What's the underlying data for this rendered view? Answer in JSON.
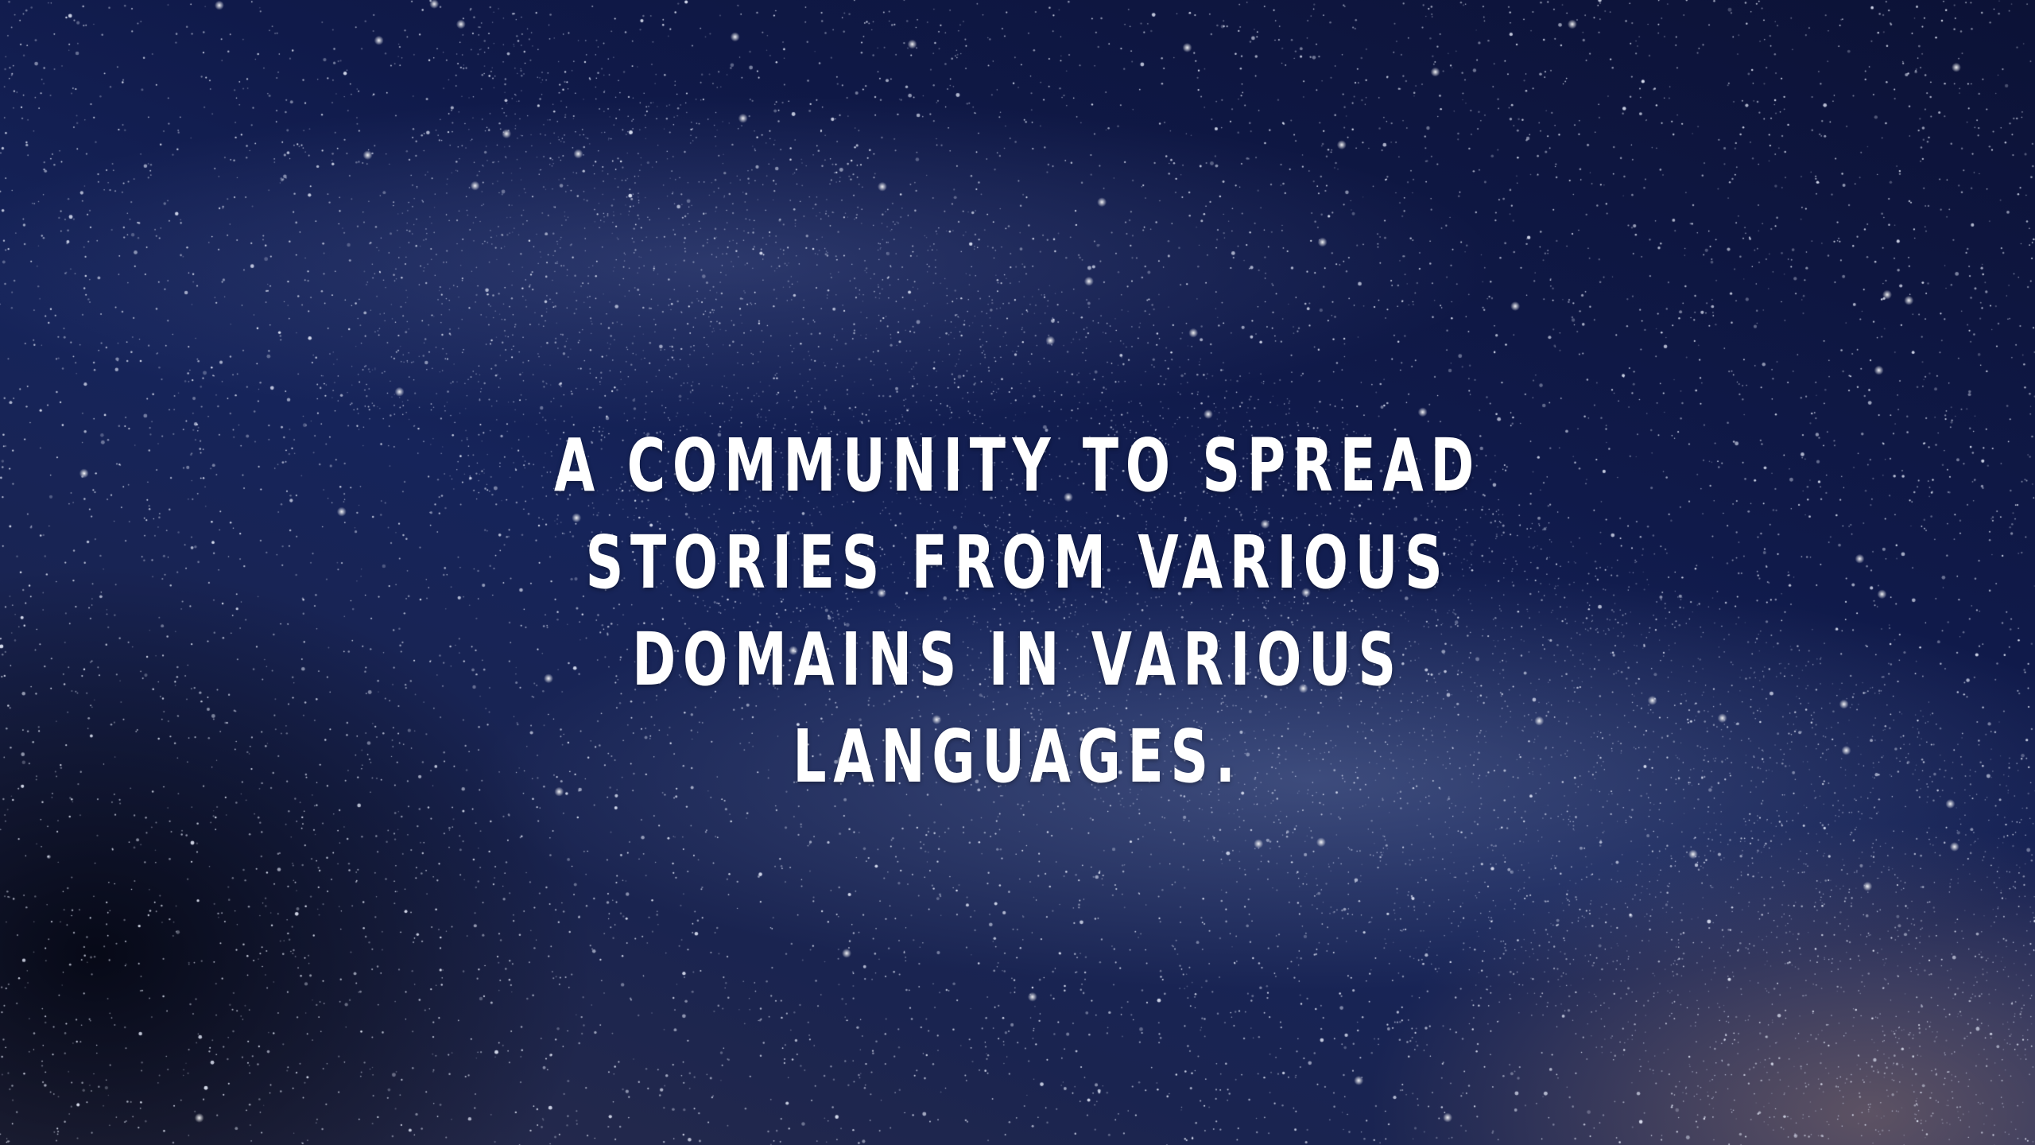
{
  "hero": {
    "tagline": "A COMMUNITY TO SPREAD STORIES FROM VARIOUS DOMAINS IN VARIOUS LANGUAGES.",
    "background": "starry-night-sky",
    "colors": {
      "sky_deep": "#0c1236",
      "sky_mid": "#16245a",
      "sky_glow": "#9a7a70",
      "text": "#ffffff"
    }
  }
}
